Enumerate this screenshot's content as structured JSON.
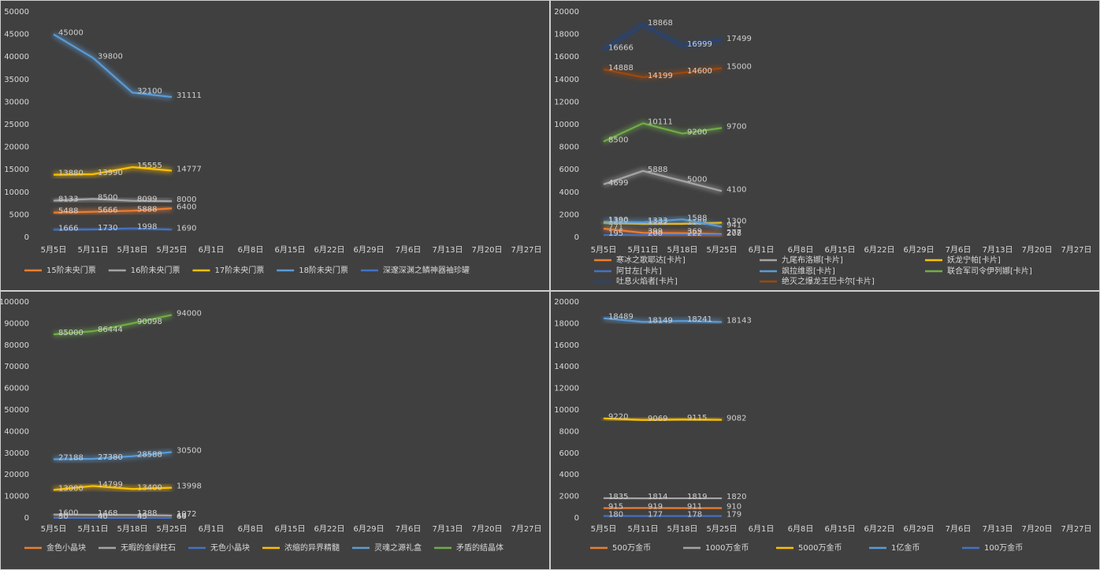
{
  "chart_data": [
    {
      "type": "line",
      "legend": "bottom",
      "grid": false,
      "categories": [
        "5月5日",
        "5月11日",
        "5月18日",
        "5月25日",
        "6月1日",
        "6月8日",
        "6月15日",
        "6月22日",
        "6月29日",
        "7月6日",
        "7月13日",
        "7月20日",
        "7月27日"
      ],
      "ylim": [
        0,
        50000
      ],
      "yticks": [
        0,
        5000,
        10000,
        15000,
        20000,
        25000,
        30000,
        35000,
        40000,
        45000,
        50000
      ],
      "series": [
        {
          "name": "15阶未央门票",
          "color": "#ed7d31",
          "values": [
            5488,
            5666,
            5888,
            6400,
            null,
            null,
            null,
            null,
            null,
            null,
            null,
            null,
            null
          ]
        },
        {
          "name": "16阶未央门票",
          "color": "#a5a5a5",
          "values": [
            8133,
            8500,
            8099,
            8000,
            null,
            null,
            null,
            null,
            null,
            null,
            null,
            null,
            null
          ]
        },
        {
          "name": "17阶未央门票",
          "color": "#ffc000",
          "values": [
            13880,
            13990,
            15555,
            14777,
            null,
            null,
            null,
            null,
            null,
            null,
            null,
            null,
            null
          ]
        },
        {
          "name": "18阶未央门票",
          "color": "#5b9bd5",
          "values": [
            45000,
            39800,
            32100,
            31111,
            null,
            null,
            null,
            null,
            null,
            null,
            null,
            null,
            null
          ]
        },
        {
          "name": "深邃深渊之鳞神器袖珍罐",
          "color": "#4472c4",
          "values": [
            1666,
            1730,
            1998,
            1690,
            null,
            null,
            null,
            null,
            null,
            null,
            null,
            null,
            null
          ]
        }
      ]
    },
    {
      "type": "line",
      "legend": "bottom",
      "grid": false,
      "categories": [
        "5月5日",
        "5月11日",
        "5月18日",
        "5月25日",
        "6月1日",
        "6月8日",
        "6月15日",
        "6月22日",
        "6月29日",
        "7月6日",
        "7月13日",
        "7月20日",
        "7月27日"
      ],
      "ylim": [
        0,
        20000
      ],
      "yticks": [
        0,
        2000,
        4000,
        6000,
        8000,
        10000,
        12000,
        14000,
        16000,
        18000,
        20000
      ],
      "series": [
        {
          "name": "寒冰之歌耶达[卡片]",
          "color": "#ed7d31",
          "values": [
            771,
            399,
            369,
            277,
            null,
            null,
            null,
            null,
            null,
            null,
            null,
            null,
            null
          ]
        },
        {
          "name": "九尾布洛娜[卡片]",
          "color": "#a5a5a5",
          "values": [
            4699,
            5888,
            5000,
            4100,
            null,
            null,
            null,
            null,
            null,
            null,
            null,
            null,
            null
          ]
        },
        {
          "name": "妖龙宁帕[卡片]",
          "color": "#ffc000",
          "values": [
            1300,
            1181,
            1188,
            1300,
            null,
            null,
            null,
            null,
            null,
            null,
            null,
            null,
            null
          ]
        },
        {
          "name": "阿甘左[卡片]",
          "color": "#4472c4",
          "values": [
            195,
            200,
            222,
            208,
            null,
            null,
            null,
            null,
            null,
            null,
            null,
            null,
            null
          ]
        },
        {
          "name": "飒拉维恩[卡片]",
          "color": "#5b9bd5",
          "values": [
            1390,
            1333,
            1588,
            941,
            null,
            null,
            null,
            null,
            null,
            null,
            null,
            null,
            null
          ]
        },
        {
          "name": "联合军司令伊列娜[卡片]",
          "color": "#70ad47",
          "values": [
            8500,
            10111,
            9200,
            9700,
            null,
            null,
            null,
            null,
            null,
            null,
            null,
            null,
            null
          ]
        },
        {
          "name": "吐息火焰者[卡片]",
          "color": "#264478",
          "values": [
            16666,
            18868,
            16999,
            17499,
            null,
            null,
            null,
            null,
            null,
            null,
            null,
            null,
            null
          ]
        },
        {
          "name": "绝灭之爆龙王巴卡尔[卡片]",
          "color": "#9e480e",
          "values": [
            14888,
            14199,
            14600,
            15000,
            null,
            null,
            null,
            null,
            null,
            null,
            null,
            null,
            null
          ]
        }
      ]
    },
    {
      "type": "line",
      "legend": "bottom",
      "grid": false,
      "categories": [
        "5月5日",
        "5月11日",
        "5月18日",
        "5月25日",
        "6月1日",
        "6月8日",
        "6月15日",
        "6月22日",
        "6月29日",
        "7月6日",
        "7月13日",
        "7月20日",
        "7月27日"
      ],
      "ylim": [
        0,
        100000
      ],
      "yticks": [
        0,
        10000,
        20000,
        30000,
        40000,
        50000,
        60000,
        70000,
        80000,
        90000,
        100000
      ],
      "series": [
        {
          "name": "金色小晶块",
          "color": "#ed7d31",
          "values": [
            80,
            66,
            88,
            64,
            null,
            null,
            null,
            null,
            null,
            null,
            null,
            null,
            null
          ]
        },
        {
          "name": "无暇的金绿柱石",
          "color": "#a5a5a5",
          "values": [
            1600,
            1468,
            1388,
            1072,
            null,
            null,
            null,
            null,
            null,
            null,
            null,
            null,
            null
          ]
        },
        {
          "name": "无色小晶块",
          "color": "#4472c4",
          "values": [
            50,
            40,
            45,
            40,
            null,
            null,
            null,
            null,
            null,
            null,
            null,
            null,
            null
          ]
        },
        {
          "name": "浓缩的异界精髓",
          "color": "#ffc000",
          "values": [
            13000,
            14799,
            13400,
            13998,
            null,
            null,
            null,
            null,
            null,
            null,
            null,
            null,
            null
          ]
        },
        {
          "name": "灵魂之源礼盒",
          "color": "#5b9bd5",
          "values": [
            27188,
            27380,
            28588,
            30500,
            null,
            null,
            null,
            null,
            null,
            null,
            null,
            null,
            null
          ]
        },
        {
          "name": "矛盾的结晶体",
          "color": "#70ad47",
          "values": [
            85000,
            86444,
            90098,
            94000,
            null,
            null,
            null,
            null,
            null,
            null,
            null,
            null,
            null
          ]
        }
      ]
    },
    {
      "type": "line",
      "legend": "bottom",
      "grid": false,
      "categories": [
        "5月5日",
        "5月11日",
        "5月18日",
        "5月25日",
        "6月1日",
        "6月8日",
        "6月15日",
        "6月22日",
        "6月29日",
        "7月6日",
        "7月13日",
        "7月20日",
        "7月27日"
      ],
      "ylim": [
        0,
        20000
      ],
      "yticks": [
        0,
        2000,
        4000,
        6000,
        8000,
        10000,
        12000,
        14000,
        16000,
        18000,
        20000
      ],
      "series": [
        {
          "name": "500万金币",
          "color": "#ed7d31",
          "values": [
            915,
            919,
            911,
            910,
            null,
            null,
            null,
            null,
            null,
            null,
            null,
            null,
            null
          ]
        },
        {
          "name": "1000万金币",
          "color": "#a5a5a5",
          "values": [
            1835,
            1814,
            1819,
            1820,
            null,
            null,
            null,
            null,
            null,
            null,
            null,
            null,
            null
          ]
        },
        {
          "name": "5000万金币",
          "color": "#ffc000",
          "values": [
            9220,
            9069,
            9115,
            9082,
            null,
            null,
            null,
            null,
            null,
            null,
            null,
            null,
            null
          ]
        },
        {
          "name": "1亿金币",
          "color": "#5b9bd5",
          "values": [
            18489,
            18149,
            18241,
            18143,
            null,
            null,
            null,
            null,
            null,
            null,
            null,
            null,
            null
          ]
        },
        {
          "name": "100万金币",
          "color": "#4472c4",
          "values": [
            180,
            177,
            178,
            179,
            null,
            null,
            null,
            null,
            null,
            null,
            null,
            null,
            null
          ]
        }
      ]
    }
  ]
}
